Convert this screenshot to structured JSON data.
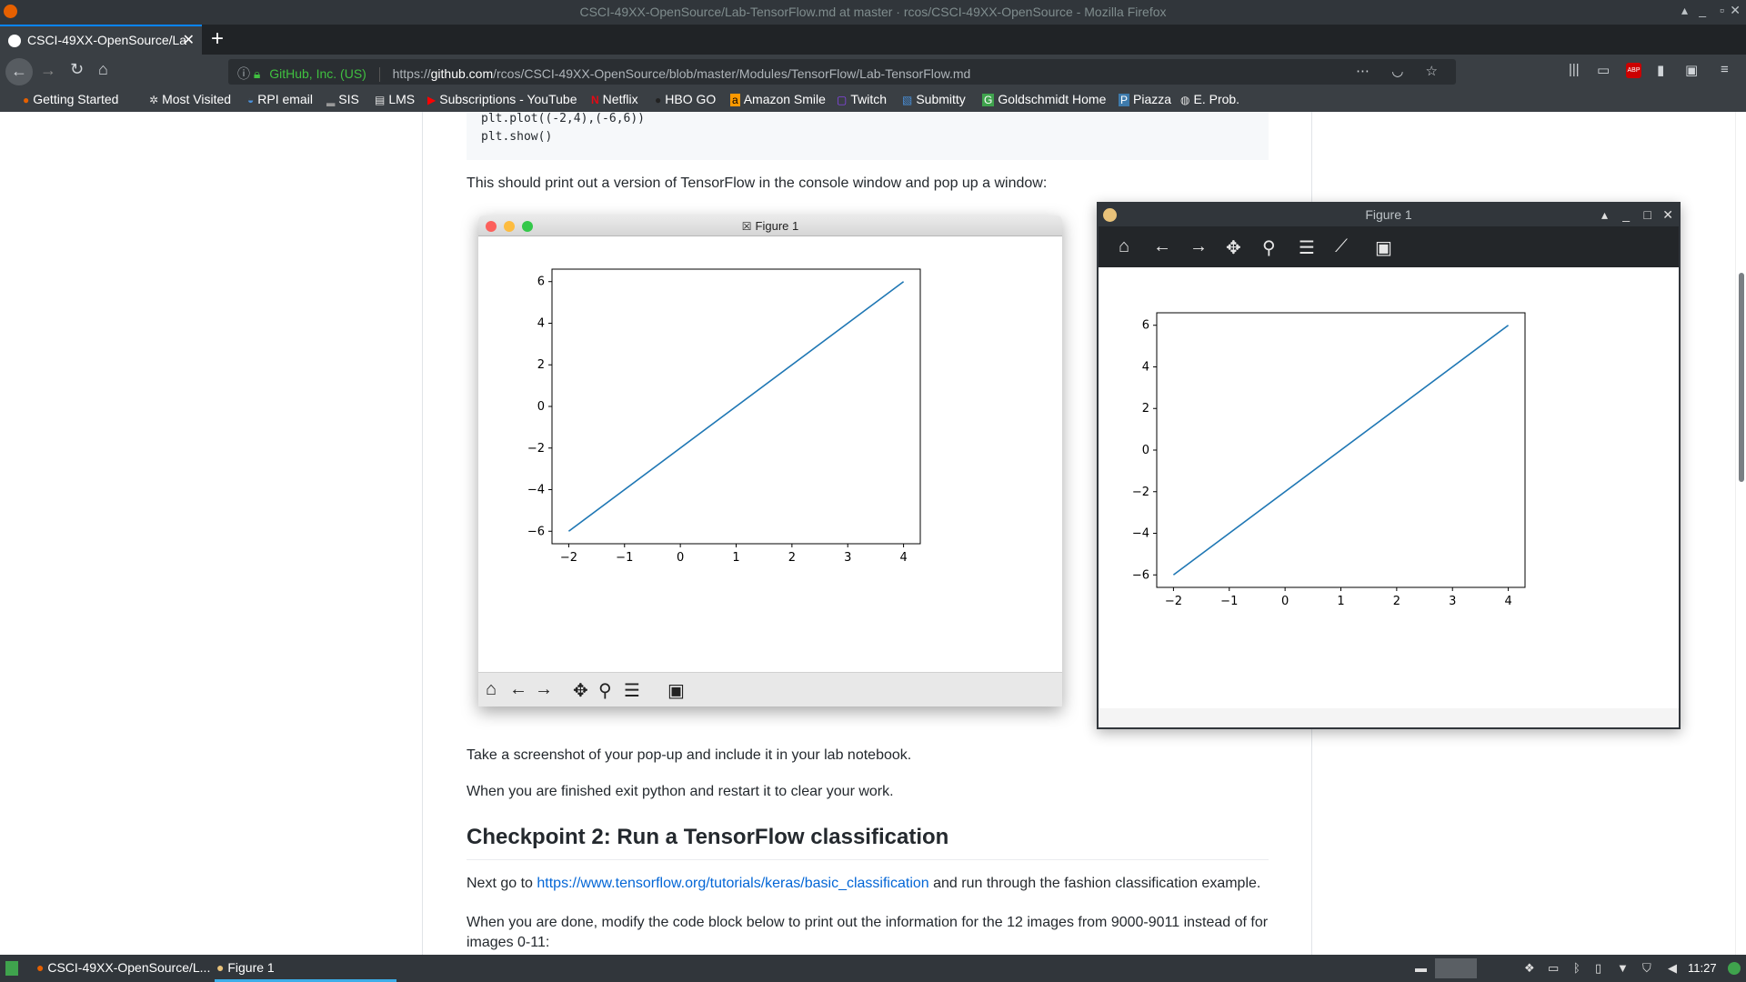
{
  "window": {
    "title": "CSCI-49XX-OpenSource/Lab-TensorFlow.md at master · rcos/CSCI-49XX-OpenSource - Mozilla Firefox"
  },
  "tab": {
    "label": "CSCI-49XX-OpenSource/La"
  },
  "urlbar": {
    "identity": "GitHub, Inc. (US)",
    "url_prefix": "https://",
    "url_host": "github.com",
    "url_path": "/rcos/CSCI-49XX-OpenSource/blob/master/Modules/TensorFlow/Lab-TensorFlow.md"
  },
  "bookmarks": [
    {
      "label": "Getting Started",
      "icon": "firefox-icon"
    },
    {
      "label": "Most Visited",
      "icon": "gear-icon"
    },
    {
      "label": "RPI email",
      "icon": "mail-icon"
    },
    {
      "label": "SIS",
      "icon": "sis-icon"
    },
    {
      "label": "LMS",
      "icon": "lms-icon"
    },
    {
      "label": "Subscriptions - YouTube",
      "icon": "youtube-icon"
    },
    {
      "label": "Netflix",
      "icon": "netflix-icon"
    },
    {
      "label": "HBO GO",
      "icon": "hbo-icon"
    },
    {
      "label": "Amazon Smile",
      "icon": "amazon-icon"
    },
    {
      "label": "Twitch",
      "icon": "twitch-icon"
    },
    {
      "label": "Submitty",
      "icon": "submitty-icon"
    },
    {
      "label": "Goldschmidt Home",
      "icon": "g-icon"
    },
    {
      "label": "Piazza",
      "icon": "piazza-icon"
    },
    {
      "label": "E. Prob.",
      "icon": "globe-icon"
    }
  ],
  "content": {
    "code_lines": [
      "plt.plot((-2,4),(-6,6))",
      "plt.show()"
    ],
    "para1": "This should print out a version of TensorFlow in the console window and pop up a window:",
    "para2": "Take a screenshot of your pop-up and include it in your lab notebook.",
    "para3": "When you are finished exit python and restart it to clear your work.",
    "heading": "Checkpoint 2: Run a TensorFlow classification",
    "para4_pre": "Next go to ",
    "para4_link": "https://www.tensorflow.org/tutorials/keras/basic_classification",
    "para4_post": " and run through the fashion classification example.",
    "para5_line1": "When you are done, modify the code block below to print out the information for the 12 images from 9000-9011 instead of for",
    "para5_line2": "images 0-11:"
  },
  "figure_mac": {
    "title": "Figure 1",
    "colors": {
      "close": "#fc605c",
      "minimize": "#fdbc40",
      "zoom": "#34c84a",
      "line": "#1f77b4"
    }
  },
  "figure_linux": {
    "title": "Figure 1"
  },
  "chart_data": [
    {
      "type": "line",
      "series": [
        {
          "x": [
            -2,
            4
          ],
          "y": [
            -6,
            6
          ]
        }
      ],
      "xticks": [
        "−2",
        "−1",
        "0",
        "1",
        "2",
        "3",
        "4"
      ],
      "yticks": [
        "6",
        "4",
        "2",
        "0",
        "−2",
        "−4",
        "−6"
      ],
      "xlim": [
        -2.3,
        4.3
      ],
      "ylim": [
        -6.6,
        6.6
      ],
      "grid": false
    },
    {
      "type": "line",
      "series": [
        {
          "x": [
            -2,
            4
          ],
          "y": [
            -6,
            6
          ]
        }
      ],
      "xticks": [
        "−2",
        "−1",
        "0",
        "1",
        "2",
        "3",
        "4"
      ],
      "yticks": [
        "6",
        "4",
        "2",
        "0",
        "−2",
        "−4",
        "−6"
      ],
      "xlim": [
        -2.3,
        4.3
      ],
      "ylim": [
        -6.6,
        6.6
      ],
      "grid": false
    }
  ],
  "taskbar": {
    "firefox_task": "CSCI-49XX-OpenSource/L...",
    "figure_task": "Figure 1",
    "clock": "11:27"
  }
}
